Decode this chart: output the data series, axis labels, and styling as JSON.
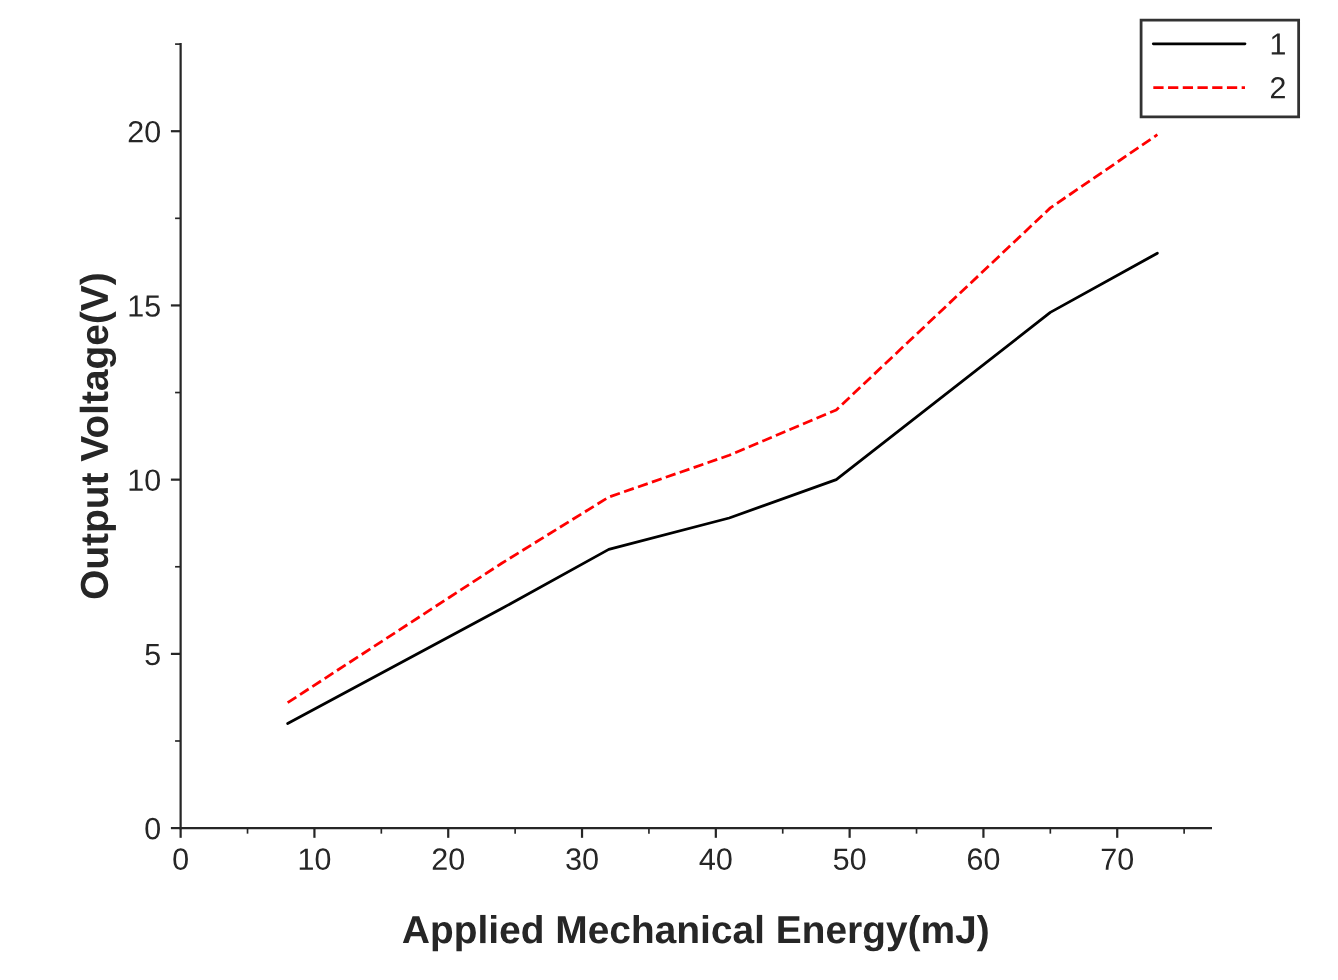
{
  "chart_data": {
    "type": "line",
    "xlabel": "Applied Mechanical Energy(mJ)",
    "ylabel": "Output Voltage(V)",
    "xlim": [
      0,
      77
    ],
    "ylim": [
      0,
      22.5
    ],
    "xticks": [
      0,
      10,
      20,
      30,
      40,
      50,
      60,
      70
    ],
    "yticks": [
      0,
      5,
      10,
      15,
      20
    ],
    "legend": "top right",
    "grid": false,
    "series": [
      {
        "name": "1",
        "color": "#000000",
        "line_style": "solid",
        "x": [
          8,
          24,
          32,
          41,
          49,
          65,
          73
        ],
        "values": [
          3.0,
          6.3,
          8.0,
          8.9,
          10.0,
          14.8,
          16.5
        ]
      },
      {
        "name": "2",
        "color": "#ff0000",
        "line_style": "dashed",
        "x": [
          8,
          24,
          32,
          41,
          49,
          65,
          73
        ],
        "values": [
          3.6,
          7.6,
          9.5,
          10.7,
          12.0,
          17.8,
          19.9
        ]
      }
    ]
  }
}
